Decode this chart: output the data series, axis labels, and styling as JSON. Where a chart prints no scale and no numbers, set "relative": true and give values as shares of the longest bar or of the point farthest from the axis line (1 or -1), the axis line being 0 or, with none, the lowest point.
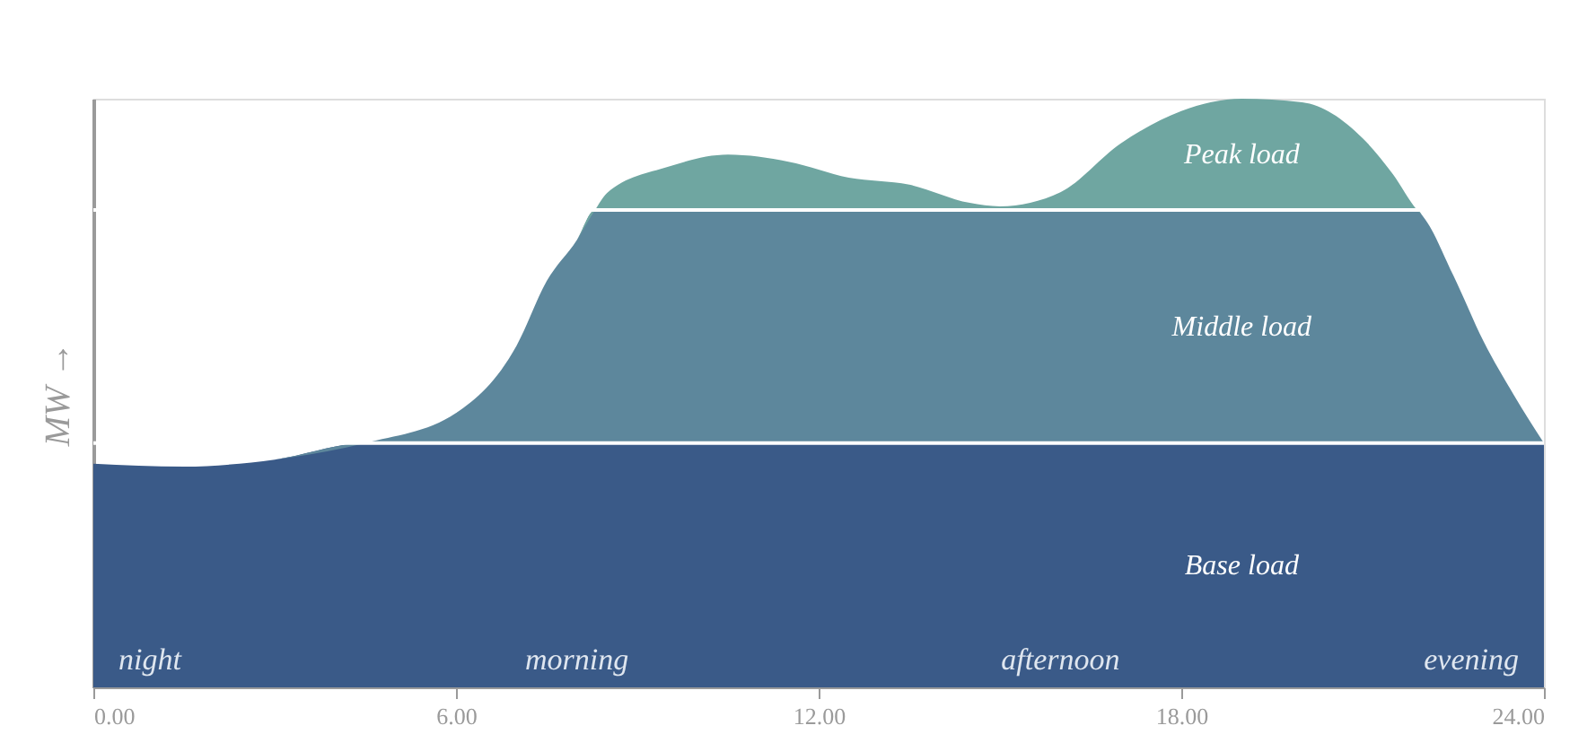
{
  "chart_data": {
    "type": "area",
    "stacked": true,
    "relative": true,
    "legend": false,
    "grid": false,
    "ylabel": "MW →",
    "x": [
      0,
      1.5,
      3,
      4.5,
      6,
      7,
      7.5,
      8,
      8.3,
      8.5,
      9.5,
      10.5,
      11.5,
      12.5,
      13.5,
      14.5,
      15,
      16,
      17,
      18,
      19,
      20,
      21,
      21.5,
      21.9,
      22,
      22.5,
      23,
      23.5,
      24
    ],
    "xlim": [
      0,
      24
    ],
    "xticks": [
      {
        "value": 0,
        "label": "0.00"
      },
      {
        "value": 6,
        "label": "6.00"
      },
      {
        "value": 12,
        "label": "12.00"
      },
      {
        "value": 18,
        "label": "18.00"
      },
      {
        "value": 24,
        "label": "24.00"
      }
    ],
    "series": [
      {
        "name": "Base load",
        "color": "#3a5a88",
        "values": [
          0.38,
          0.375,
          0.387,
          0.415,
          0.415,
          0.415,
          0.415,
          0.415,
          0.415,
          0.415,
          0.415,
          0.415,
          0.415,
          0.415,
          0.415,
          0.415,
          0.415,
          0.415,
          0.415,
          0.415,
          0.415,
          0.415,
          0.415,
          0.415,
          0.415,
          0.415,
          0.415,
          0.415,
          0.415,
          0.415
        ]
      },
      {
        "name": "Middle load",
        "color": "#5d879c",
        "values": [
          0,
          0,
          0,
          0,
          0.051,
          0.165,
          0.275,
          0.345,
          0.396,
          0.396,
          0.396,
          0.396,
          0.396,
          0.396,
          0.396,
          0.396,
          0.396,
          0.396,
          0.396,
          0.396,
          0.396,
          0.396,
          0.396,
          0.396,
          0.396,
          0.385,
          0.285,
          0.173,
          0.082,
          0
        ]
      },
      {
        "name": "Peak load",
        "color": "#6fa6a1",
        "values": [
          0,
          0,
          0,
          0,
          0,
          0,
          0,
          0,
          0,
          0.029,
          0.073,
          0.094,
          0.082,
          0.055,
          0.043,
          0.012,
          0.006,
          0.03,
          0.113,
          0.168,
          0.189,
          0.183,
          0.122,
          0.061,
          0,
          0,
          0,
          0,
          0,
          0
        ]
      }
    ],
    "ref_lines": [
      {
        "axis": "y",
        "value": 0.415,
        "color": "#ffffff"
      },
      {
        "axis": "y",
        "value": 0.811,
        "color": "#ffffff"
      }
    ],
    "annotations": [
      "night",
      "morning",
      "afternoon",
      "evening"
    ]
  }
}
